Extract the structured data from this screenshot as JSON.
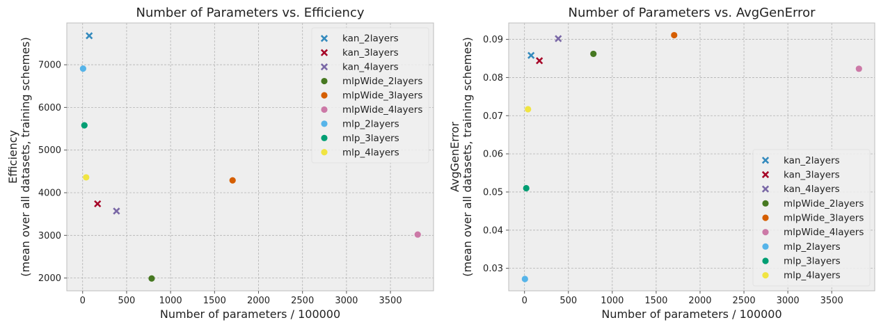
{
  "chart_data": [
    {
      "type": "scatter",
      "title": "Number of Parameters vs. Efficiency",
      "xlabel": "Number of parameters / 100000",
      "ylabel_lines": [
        "Efficiency",
        "(mean over all datasets, training schemes)"
      ],
      "xlim": [
        -180,
        3990
      ],
      "ylim": [
        1700,
        7980
      ],
      "xticks": [
        "0",
        "500",
        "1000",
        "1500",
        "2000",
        "2500",
        "3000",
        "3500"
      ],
      "xtick_values": [
        0,
        500,
        1000,
        1500,
        2000,
        2500,
        3000,
        3500
      ],
      "yticks": [
        "2000",
        "3000",
        "4000",
        "5000",
        "6000",
        "7000"
      ],
      "ytick_values": [
        2000,
        3000,
        4000,
        5000,
        6000,
        7000
      ],
      "legend_position": "top-right",
      "series": [
        {
          "name": "kan_2layers",
          "marker": "x",
          "color": "#348ABD",
          "x": 75,
          "y": 7680
        },
        {
          "name": "kan_3layers",
          "marker": "x",
          "color": "#A60628",
          "x": 170,
          "y": 3740
        },
        {
          "name": "kan_4layers",
          "marker": "x",
          "color": "#7A68A6",
          "x": 385,
          "y": 3570
        },
        {
          "name": "mlpWide_2layers",
          "marker": "o",
          "color": "#467821",
          "x": 785,
          "y": 1990
        },
        {
          "name": "mlpWide_3layers",
          "marker": "o",
          "color": "#D55E00",
          "x": 1705,
          "y": 4290
        },
        {
          "name": "mlpWide_4layers",
          "marker": "o",
          "color": "#CC79A7",
          "x": 3810,
          "y": 3020
        },
        {
          "name": "mlp_2layers",
          "marker": "o",
          "color": "#56B4E9",
          "x": 5,
          "y": 6910
        },
        {
          "name": "mlp_3layers",
          "marker": "o",
          "color": "#009E73",
          "x": 20,
          "y": 5580
        },
        {
          "name": "mlp_4layers",
          "marker": "o",
          "color": "#F0E442",
          "x": 40,
          "y": 4360
        }
      ]
    },
    {
      "type": "scatter",
      "title": "Number of Parameters vs. AvgGenError",
      "xlabel": "Number of parameters / 100000",
      "ylabel_lines": [
        "AvgGenError",
        "(mean over all datasets, training schemes)"
      ],
      "xlim": [
        -180,
        3990
      ],
      "ylim": [
        0.0241,
        0.0943
      ],
      "xticks": [
        "0",
        "500",
        "1000",
        "1500",
        "2000",
        "2500",
        "3000",
        "3500"
      ],
      "xtick_values": [
        0,
        500,
        1000,
        1500,
        2000,
        2500,
        3000,
        3500
      ],
      "yticks": [
        "0.03",
        "0.04",
        "0.05",
        "0.06",
        "0.07",
        "0.08",
        "0.09"
      ],
      "ytick_values": [
        0.03,
        0.04,
        0.05,
        0.06,
        0.07,
        0.08,
        0.09
      ],
      "legend_position": "bottom-right",
      "series": [
        {
          "name": "kan_2layers",
          "marker": "x",
          "color": "#348ABD",
          "x": 75,
          "y": 0.0858
        },
        {
          "name": "kan_3layers",
          "marker": "x",
          "color": "#A60628",
          "x": 170,
          "y": 0.0844
        },
        {
          "name": "kan_4layers",
          "marker": "x",
          "color": "#7A68A6",
          "x": 385,
          "y": 0.0902
        },
        {
          "name": "mlpWide_2layers",
          "marker": "o",
          "color": "#467821",
          "x": 785,
          "y": 0.0862
        },
        {
          "name": "mlpWide_3layers",
          "marker": "o",
          "color": "#D55E00",
          "x": 1705,
          "y": 0.0911
        },
        {
          "name": "mlpWide_4layers",
          "marker": "o",
          "color": "#CC79A7",
          "x": 3810,
          "y": 0.0823
        },
        {
          "name": "mlp_2layers",
          "marker": "o",
          "color": "#56B4E9",
          "x": 5,
          "y": 0.0272
        },
        {
          "name": "mlp_3layers",
          "marker": "o",
          "color": "#009E73",
          "x": 20,
          "y": 0.051
        },
        {
          "name": "mlp_4layers",
          "marker": "o",
          "color": "#F0E442",
          "x": 40,
          "y": 0.0717
        }
      ]
    }
  ]
}
